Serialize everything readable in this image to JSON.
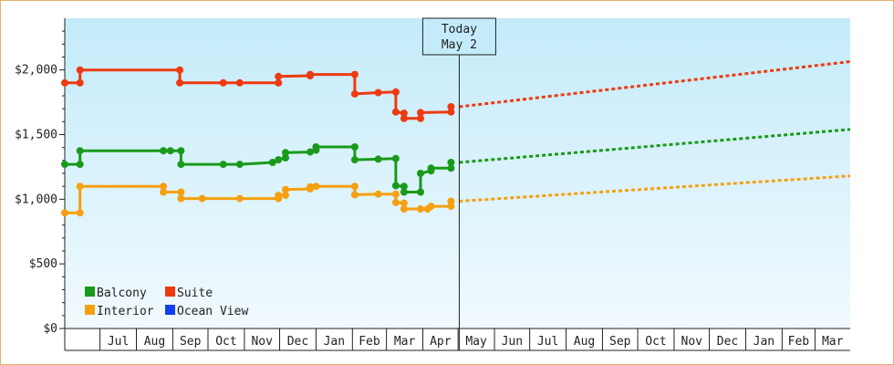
{
  "chart_data": {
    "type": "line",
    "title": "",
    "xlabel": "",
    "ylabel": "",
    "ylim": [
      0,
      2400
    ],
    "yticks": [
      0,
      500,
      1000,
      1500,
      2000
    ],
    "ytick_labels": [
      "$0",
      "$500",
      "$1,000",
      "$1,500",
      "$2,000"
    ],
    "x_start": "2015-06-01",
    "x_end": "2017-03-31",
    "month_labels": [
      {
        "label": "Jul",
        "date": "2015-07-01"
      },
      {
        "label": "Aug",
        "date": "2015-08-01"
      },
      {
        "label": "Sep",
        "date": "2015-09-01"
      },
      {
        "label": "Oct",
        "date": "2015-10-01"
      },
      {
        "label": "Nov",
        "date": "2015-11-01"
      },
      {
        "label": "Dec",
        "date": "2015-12-01"
      },
      {
        "label": "Jan",
        "date": "2016-01-01"
      },
      {
        "label": "Feb",
        "date": "2016-02-01"
      },
      {
        "label": "Mar",
        "date": "2016-03-01"
      },
      {
        "label": "Apr",
        "date": "2016-04-01"
      },
      {
        "label": "May",
        "date": "2016-05-01"
      },
      {
        "label": "Jun",
        "date": "2016-06-01"
      },
      {
        "label": "Jul",
        "date": "2016-07-01"
      },
      {
        "label": "Aug",
        "date": "2016-08-01"
      },
      {
        "label": "Sep",
        "date": "2016-09-01"
      },
      {
        "label": "Oct",
        "date": "2016-10-01"
      },
      {
        "label": "Nov",
        "date": "2016-11-01"
      },
      {
        "label": "Dec",
        "date": "2016-12-01"
      },
      {
        "label": "Jan",
        "date": "2017-01-01"
      },
      {
        "label": "Feb",
        "date": "2017-02-01"
      },
      {
        "label": "Mar",
        "date": "2017-03-01"
      }
    ],
    "today": {
      "date": "2016-05-02",
      "line1": "Today",
      "line2": "May 2"
    },
    "series": [
      {
        "name": "Balcony",
        "color": "#1a9a1a",
        "points": [
          [
            "2015-06-01",
            1270
          ],
          [
            "2015-06-14",
            1270
          ],
          [
            "2015-06-14",
            1375
          ],
          [
            "2015-08-24",
            1375
          ],
          [
            "2015-08-30",
            1375
          ],
          [
            "2015-09-08",
            1375
          ],
          [
            "2015-09-08",
            1270
          ],
          [
            "2015-10-14",
            1270
          ],
          [
            "2015-10-28",
            1270
          ],
          [
            "2015-11-25",
            1285
          ],
          [
            "2015-11-30",
            1305
          ],
          [
            "2015-12-06",
            1320
          ],
          [
            "2015-12-06",
            1360
          ],
          [
            "2015-12-27",
            1365
          ],
          [
            "2016-01-01",
            1380
          ],
          [
            "2016-01-01",
            1405
          ],
          [
            "2016-02-03",
            1405
          ],
          [
            "2016-02-03",
            1305
          ],
          [
            "2016-02-23",
            1310
          ],
          [
            "2016-03-09",
            1315
          ],
          [
            "2016-03-09",
            1105
          ],
          [
            "2016-03-16",
            1100
          ],
          [
            "2016-03-16",
            1055
          ],
          [
            "2016-03-30",
            1055
          ],
          [
            "2016-03-30",
            1200
          ],
          [
            "2016-04-08",
            1220
          ],
          [
            "2016-04-08",
            1240
          ],
          [
            "2016-04-25",
            1240
          ],
          [
            "2016-04-25",
            1285
          ]
        ],
        "forecast": [
          [
            "2016-05-02",
            1285
          ],
          [
            "2017-03-31",
            1540
          ]
        ]
      },
      {
        "name": "Suite",
        "color": "#ee3a10",
        "points": [
          [
            "2015-06-01",
            1900
          ],
          [
            "2015-06-14",
            1900
          ],
          [
            "2015-06-14",
            2000
          ],
          [
            "2015-09-07",
            2000
          ],
          [
            "2015-09-07",
            1900
          ],
          [
            "2015-10-14",
            1900
          ],
          [
            "2015-10-28",
            1900
          ],
          [
            "2015-11-30",
            1900
          ],
          [
            "2015-11-30",
            1950
          ],
          [
            "2015-12-27",
            1955
          ],
          [
            "2015-12-27",
            1965
          ],
          [
            "2016-02-03",
            1965
          ],
          [
            "2016-02-03",
            1815
          ],
          [
            "2016-02-23",
            1825
          ],
          [
            "2016-03-09",
            1830
          ],
          [
            "2016-03-09",
            1675
          ],
          [
            "2016-03-16",
            1665
          ],
          [
            "2016-03-16",
            1625
          ],
          [
            "2016-03-30",
            1625
          ],
          [
            "2016-03-30",
            1670
          ],
          [
            "2016-04-25",
            1675
          ],
          [
            "2016-04-25",
            1715
          ]
        ],
        "forecast": [
          [
            "2016-05-02",
            1715
          ],
          [
            "2017-03-31",
            2065
          ]
        ]
      },
      {
        "name": "Interior",
        "color": "#f5a010",
        "points": [
          [
            "2015-06-01",
            895
          ],
          [
            "2015-06-14",
            895
          ],
          [
            "2015-06-14",
            1100
          ],
          [
            "2015-08-24",
            1100
          ],
          [
            "2015-08-24",
            1055
          ],
          [
            "2015-09-08",
            1055
          ],
          [
            "2015-09-08",
            1005
          ],
          [
            "2015-09-26",
            1005
          ],
          [
            "2015-10-28",
            1005
          ],
          [
            "2015-11-30",
            1005
          ],
          [
            "2015-11-30",
            1030
          ],
          [
            "2015-12-06",
            1030
          ],
          [
            "2015-12-06",
            1075
          ],
          [
            "2015-12-27",
            1080
          ],
          [
            "2015-12-27",
            1095
          ],
          [
            "2016-01-01",
            1100
          ],
          [
            "2016-02-03",
            1100
          ],
          [
            "2016-02-03",
            1035
          ],
          [
            "2016-02-23",
            1040
          ],
          [
            "2016-03-09",
            1040
          ],
          [
            "2016-03-09",
            975
          ],
          [
            "2016-03-16",
            970
          ],
          [
            "2016-03-16",
            925
          ],
          [
            "2016-03-30",
            925
          ],
          [
            "2016-04-05",
            925
          ],
          [
            "2016-04-08",
            945
          ],
          [
            "2016-04-25",
            945
          ],
          [
            "2016-04-25",
            985
          ]
        ],
        "forecast": [
          [
            "2016-05-02",
            985
          ],
          [
            "2017-03-31",
            1180
          ]
        ]
      },
      {
        "name": "Ocean View",
        "color": "#1040f0",
        "points": [],
        "forecast": []
      }
    ],
    "grid": false,
    "legend_placement": "bottom-left"
  }
}
